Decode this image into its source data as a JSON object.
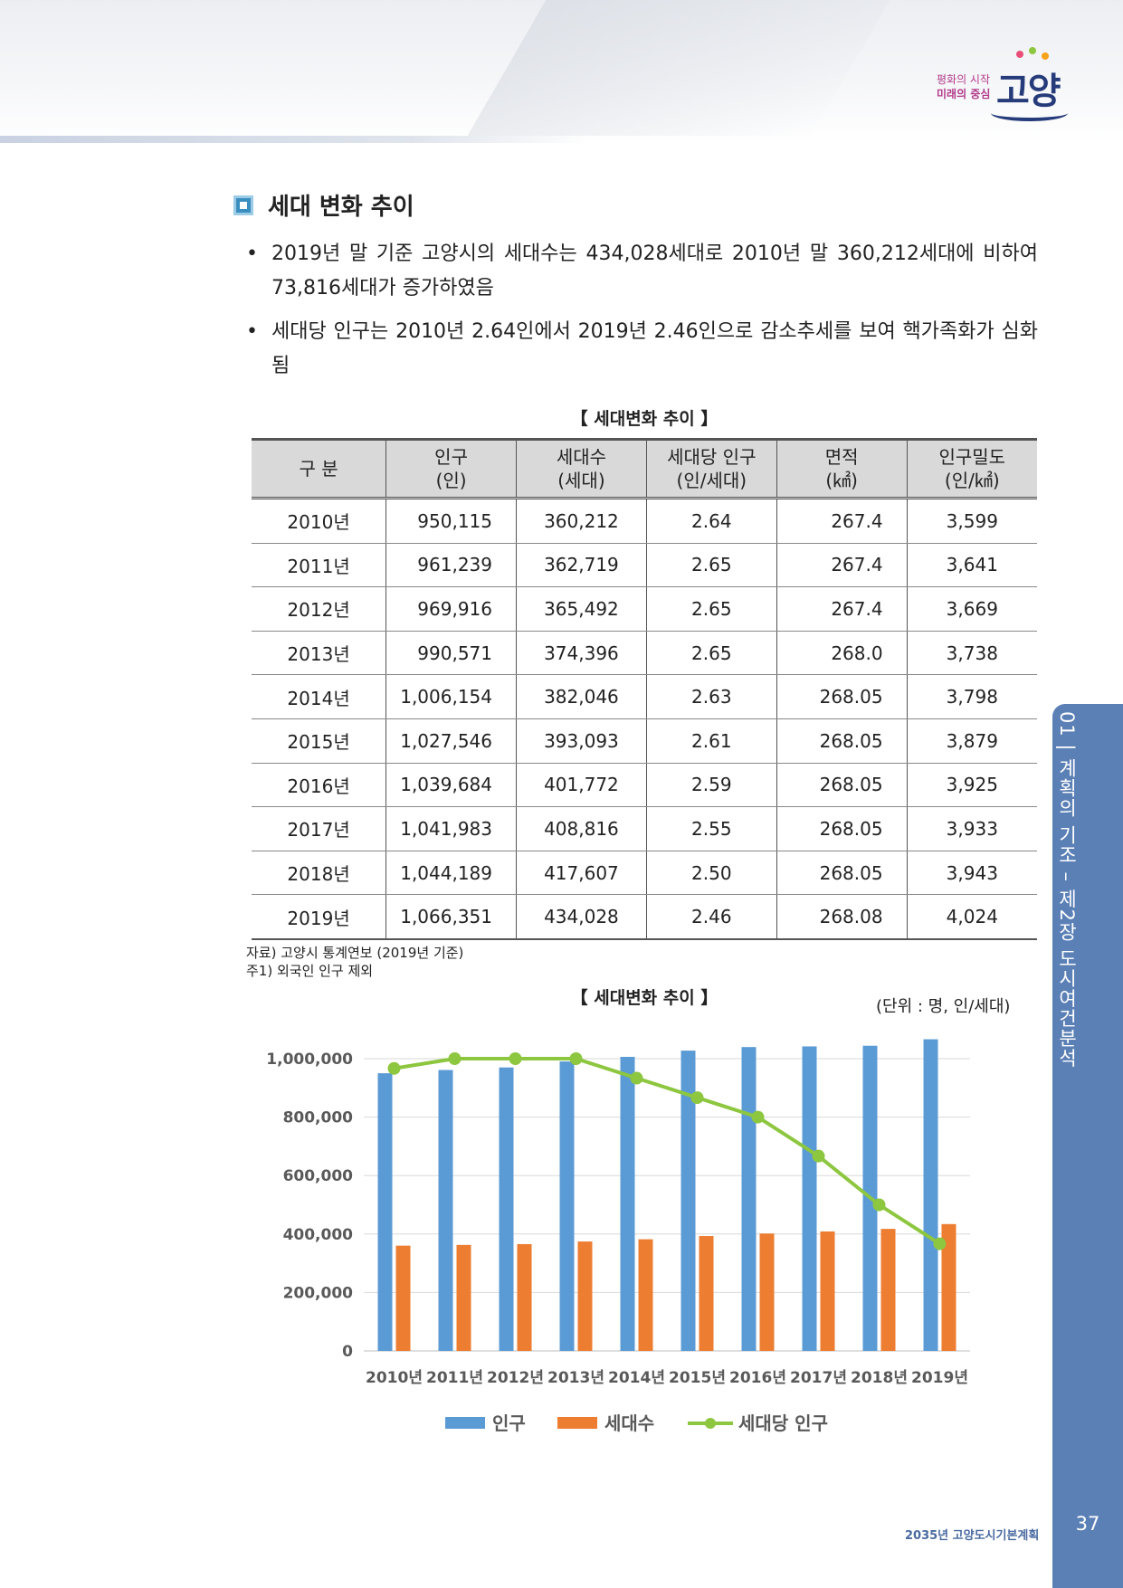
{
  "logo": {
    "line1": "평화의 시작",
    "line2": "미래의 중심",
    "name": "고양"
  },
  "section_title": "세대 변화 추이",
  "bullets": [
    "2019년 말 기준 고양시의 세대수는 434,028세대로 2010년 말 360,212세대에 비하여 73,816세대가 증가하였음",
    "세대당 인구는 2010년 2.64인에서 2019년 2.46인으로 감소추세를 보여 핵가족화가 심화됨"
  ],
  "table": {
    "caption": "【 세대변화 추이 】",
    "headers": [
      {
        "l1": "구   분",
        "l2": ""
      },
      {
        "l1": "인구",
        "l2": "(인)"
      },
      {
        "l1": "세대수",
        "l2": "(세대)"
      },
      {
        "l1": "세대당 인구",
        "l2": "(인/세대)"
      },
      {
        "l1": "면적",
        "l2": "(㎢)"
      },
      {
        "l1": "인구밀도",
        "l2": "(인/㎢)"
      }
    ],
    "rows": [
      [
        "2010년",
        "950,115",
        "360,212",
        "2.64",
        "267.4",
        "3,599"
      ],
      [
        "2011년",
        "961,239",
        "362,719",
        "2.65",
        "267.4",
        "3,641"
      ],
      [
        "2012년",
        "969,916",
        "365,492",
        "2.65",
        "267.4",
        "3,669"
      ],
      [
        "2013년",
        "990,571",
        "374,396",
        "2.65",
        "268.0",
        "3,738"
      ],
      [
        "2014년",
        "1,006,154",
        "382,046",
        "2.63",
        "268.05",
        "3,798"
      ],
      [
        "2015년",
        "1,027,546",
        "393,093",
        "2.61",
        "268.05",
        "3,879"
      ],
      [
        "2016년",
        "1,039,684",
        "401,772",
        "2.59",
        "268.05",
        "3,925"
      ],
      [
        "2017년",
        "1,041,983",
        "408,816",
        "2.55",
        "268.05",
        "3,933"
      ],
      [
        "2018년",
        "1,044,189",
        "417,607",
        "2.50",
        "268.05",
        "3,943"
      ],
      [
        "2019년",
        "1,066,351",
        "434,028",
        "2.46",
        "268.08",
        "4,024"
      ]
    ]
  },
  "notes": [
    "자료) 고양시 통계연보 (2019년 기준)",
    "주1) 외국인 인구 제외"
  ],
  "chart_data": {
    "type": "bar",
    "title": "【 세대변화 추이 】",
    "unit": "(단위 : 명, 인/세대)",
    "categories": [
      "2010년",
      "2011년",
      "2012년",
      "2013년",
      "2014년",
      "2015년",
      "2016년",
      "2017년",
      "2018년",
      "2019년"
    ],
    "series": [
      {
        "name": "인구",
        "type": "bar",
        "axis": "left",
        "color": "#5b9bd5",
        "values": [
          950115,
          961239,
          969916,
          990571,
          1006154,
          1027546,
          1039684,
          1041983,
          1044189,
          1066351
        ]
      },
      {
        "name": "세대수",
        "type": "bar",
        "axis": "left",
        "color": "#ed7d31",
        "values": [
          360212,
          362719,
          365492,
          374396,
          382046,
          393093,
          401772,
          408816,
          417607,
          434028
        ]
      },
      {
        "name": "세대당 인구",
        "type": "line",
        "axis": "right",
        "color": "#8dc63f",
        "values": [
          2.64,
          2.65,
          2.65,
          2.65,
          2.63,
          2.61,
          2.59,
          2.55,
          2.5,
          2.46
        ]
      }
    ],
    "left_axis": {
      "min": 0,
      "max": 1000000,
      "ticks": [
        "0",
        "200,000",
        "400,000",
        "600,000",
        "800,000",
        "1,000,000"
      ]
    },
    "right_axis": {
      "min": 2.35,
      "max": 2.65,
      "ticks": [
        "2.35",
        "2.4",
        "2.45",
        "2.5",
        "2.55",
        "2.6",
        "2.65"
      ]
    },
    "grid": true,
    "legend_position": "bottom"
  },
  "side_tab": {
    "label": "01 | 계획의 기조 – 제2장 도시여건분석"
  },
  "footer": {
    "text": "2035년 고양도시기본계획",
    "page": "37"
  }
}
